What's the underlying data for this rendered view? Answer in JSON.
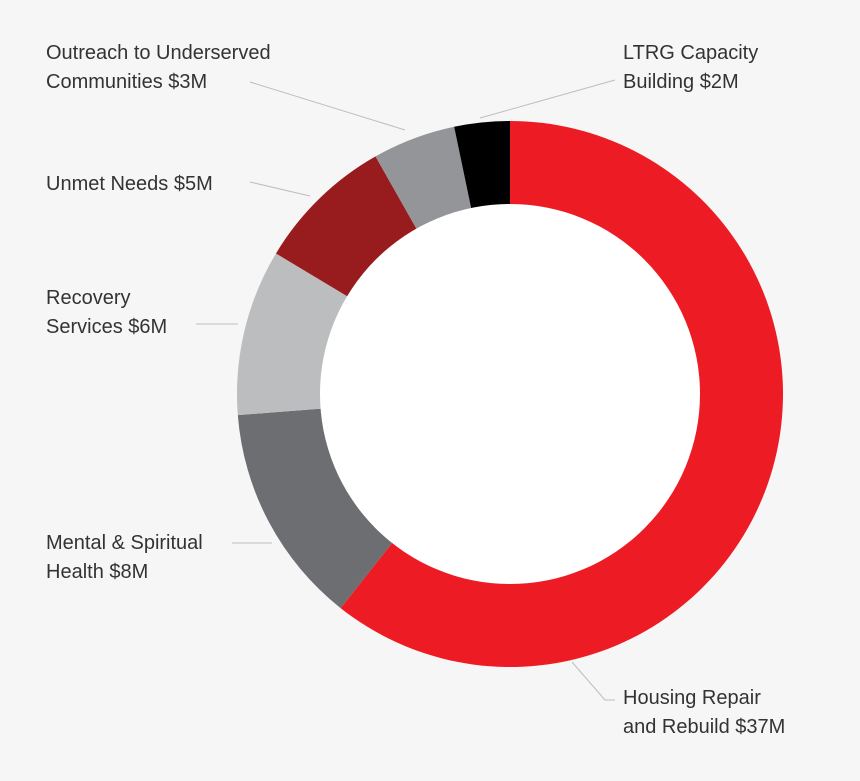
{
  "chart_data": {
    "type": "pie",
    "donut": true,
    "title": "",
    "unit": "$M",
    "slices": [
      {
        "key": "housing",
        "label_lines": [
          "Housing Repair",
          "and Rebuild $37M"
        ],
        "value": 37,
        "color": "#ed1c24"
      },
      {
        "key": "mental",
        "label_lines": [
          "Mental & Spiritual",
          "Health $8M"
        ],
        "value": 8,
        "color": "#6d6e71"
      },
      {
        "key": "recovery",
        "label_lines": [
          "Recovery",
          "Services $6M"
        ],
        "value": 6,
        "color": "#bcbdbf"
      },
      {
        "key": "unmet",
        "label_lines": [
          "Unmet Needs $5M"
        ],
        "value": 5,
        "color": "#981b1e"
      },
      {
        "key": "outreach",
        "label_lines": [
          "Outreach to Underserved",
          "Communities $3M"
        ],
        "value": 3,
        "color": "#939598"
      },
      {
        "key": "ltrg",
        "label_lines": [
          "LTRG Capacity",
          "Building $2M"
        ],
        "value": 2,
        "color": "#000000"
      }
    ]
  }
}
